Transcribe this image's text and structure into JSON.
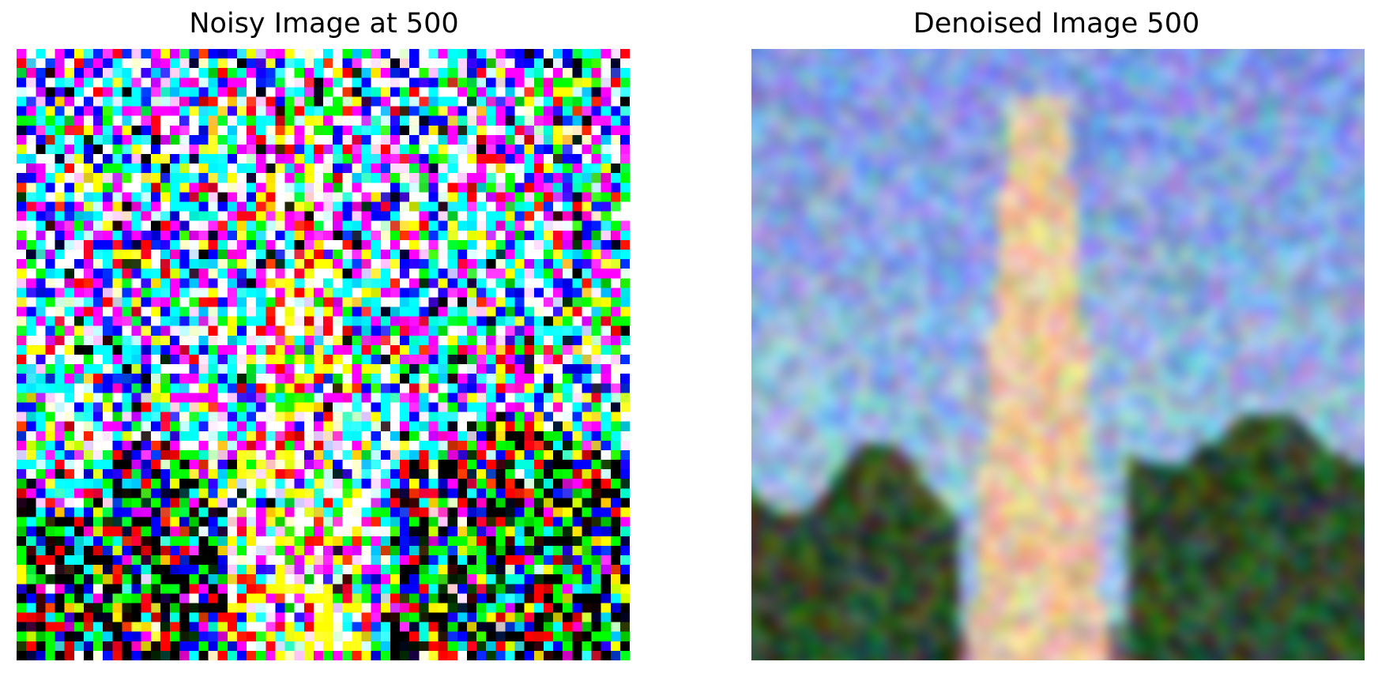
{
  "panels": {
    "noisy": {
      "title": "Noisy Image at 500"
    },
    "denoised": {
      "title": "Denoised Image 500"
    }
  },
  "colors": {
    "sky": "#7f99e6",
    "trees": "#2f4a2a",
    "tower": "#f0c8a0",
    "background": "#ffffff"
  }
}
